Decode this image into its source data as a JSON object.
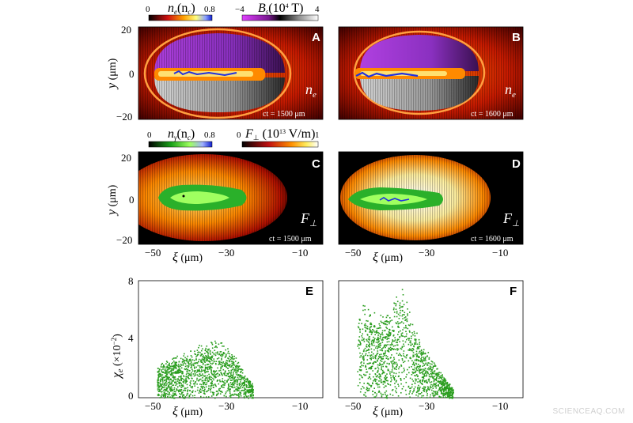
{
  "figure": {
    "panel_letters": [
      "A",
      "B",
      "C",
      "D",
      "E",
      "F"
    ],
    "time_labels": [
      "ct = 1500 μm",
      "ct = 1600 μm",
      "ct = 1500 μm",
      "ct = 1600 μm"
    ],
    "field_symbols": {
      "ne": "n",
      "ne_sub": "e",
      "fperp": "F",
      "fperp_sub": "⊥"
    },
    "colorbars": {
      "ne": {
        "title_main": "n",
        "title_sub": "e",
        "title_rest": "(n",
        "title_sub2": "c",
        "title_end": ")",
        "min": "0",
        "max": "0.8"
      },
      "bs": {
        "title_main": "B",
        "title_sub": "s",
        "title_rest": "(10",
        "title_sup": "4",
        "title_end": " T)",
        "min": "−4",
        "max": "4"
      },
      "ngamma": {
        "title_main": "n",
        "title_sub": "γ",
        "title_rest": "(n",
        "title_sub2": "c",
        "title_end": ")",
        "min": "0",
        "max": "0.8"
      },
      "fperp": {
        "title_main": "F",
        "title_sub": "⊥",
        "title_rest": " (10",
        "title_sup": "13",
        "title_end": " V/m)",
        "min": "0",
        "max": "1"
      }
    },
    "axes": {
      "y_label_main": "y",
      "y_label_unit": " (μm)",
      "x_label_main": "ξ",
      "x_label_unit": " (μm)",
      "y_ticks": [
        "20",
        "0",
        "−20"
      ],
      "x_ticks": [
        "−50",
        "−30",
        "−10"
      ],
      "chi_label_main": "χ",
      "chi_label_sub": "e",
      "chi_label_unit": " (×10",
      "chi_label_sup": "−2",
      "chi_label_end": ")",
      "chi_ticks": [
        "8",
        "4",
        "0"
      ]
    },
    "colors": {
      "scatter_green": "#2a9d1e",
      "purple": "#a020c8",
      "field_orange": "#ff8a00",
      "background_dark": "#1a0000"
    }
  },
  "chart_data": [
    {
      "type": "scatter",
      "panel": "E",
      "xlabel": "ξ (μm)",
      "ylabel": "χe (×10−2)",
      "xlim": [
        -55,
        -5
      ],
      "ylim": [
        0,
        8
      ],
      "envelope": {
        "x": [
          -50,
          -48,
          -45,
          -42,
          -40,
          -38,
          -35,
          -33,
          -30,
          -28,
          -26,
          -24
        ],
        "y": [
          2.0,
          2.3,
          2.6,
          2.9,
          3.1,
          3.3,
          3.5,
          3.6,
          3.0,
          2.3,
          1.5,
          0.8
        ]
      },
      "x_range": [
        -50,
        -24
      ]
    },
    {
      "type": "scatter",
      "panel": "F",
      "xlabel": "ξ (μm)",
      "ylabel": "χe (×10−2)",
      "xlim": [
        -55,
        -5
      ],
      "ylim": [
        0,
        8
      ],
      "envelope": {
        "x": [
          -50,
          -48,
          -46,
          -44,
          -42,
          -40,
          -38,
          -36,
          -34,
          -32,
          -30,
          -28,
          -26,
          -24
        ],
        "y": [
          5.5,
          5.8,
          5.4,
          5.0,
          5.2,
          6.0,
          6.8,
          5.6,
          4.0,
          3.2,
          2.5,
          1.8,
          1.2,
          0.6
        ]
      },
      "x_range": [
        -50,
        -24
      ]
    }
  ]
}
